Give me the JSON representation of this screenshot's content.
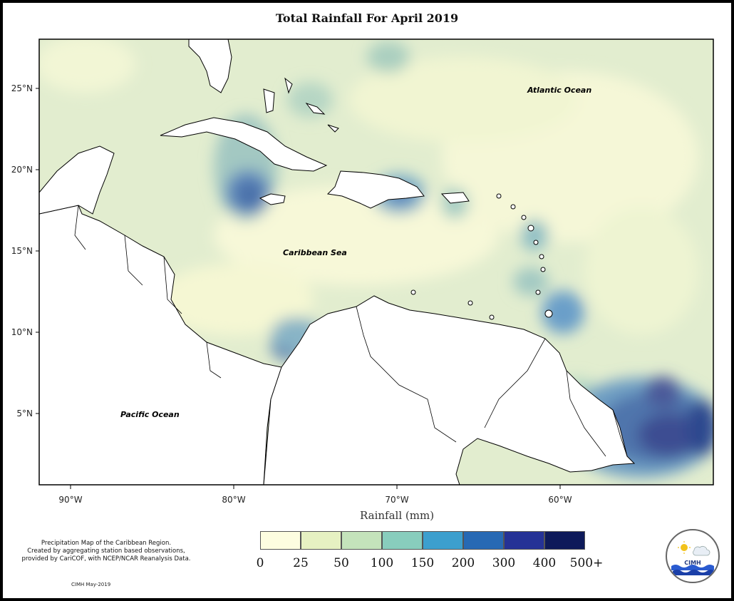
{
  "title": "Total Rainfall For April 2019",
  "map": {
    "labels": {
      "atlantic": "Atlantic Ocean",
      "caribbean": "Caribbean Sea",
      "pacific": "Pacific Ocean"
    },
    "lat_ticks": [
      "25°N",
      "20°N",
      "15°N",
      "10°N",
      "5°N"
    ],
    "lon_ticks": [
      "90°W",
      "80°W",
      "70°W",
      "60°W"
    ],
    "x_axis_title": "Rainfall (mm)"
  },
  "legend": {
    "labels": [
      "0",
      "25",
      "50",
      "100",
      "150",
      "200",
      "300",
      "400",
      "500+"
    ],
    "colors": [
      "#fdfde0",
      "#e6f1c2",
      "#c4e3bb",
      "#88cdbd",
      "#3c9fce",
      "#2769b4",
      "#253296",
      "#0e1a5a"
    ]
  },
  "credit": {
    "line1": "Precipitation Map of the Caribbean Region.",
    "line2": "Created by aggregating station based observations,",
    "line3": "provided by CariCOF, with NCEP/NCAR Reanalysis Data.",
    "date": "CIMH May-2019"
  },
  "logo": {
    "name": "CIMH",
    "icons": [
      "sun-icon",
      "cloud-icon",
      "waves-icon"
    ]
  }
}
